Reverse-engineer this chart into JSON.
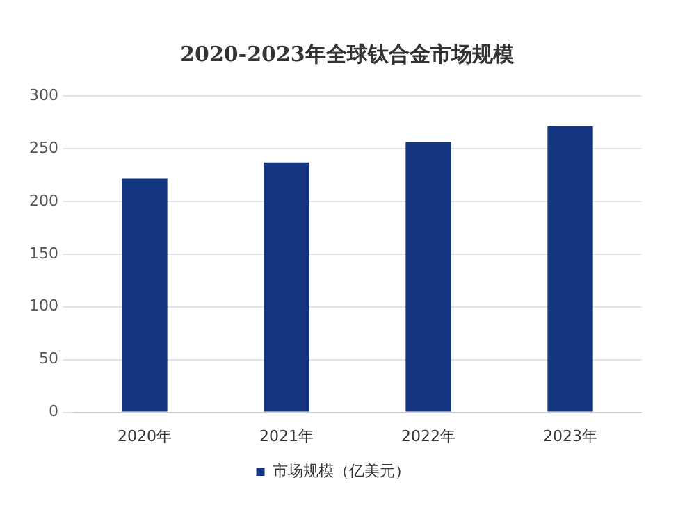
{
  "chart_data": {
    "type": "bar",
    "title": "2020-2023年全球钛合金市场规模",
    "categories": [
      "2020年",
      "2021年",
      "2022年",
      "2023年"
    ],
    "series": [
      {
        "name": "市场规模（亿美元）",
        "color": "#13357f",
        "values": [
          222,
          237,
          256,
          271
        ]
      }
    ],
    "ylim": [
      0,
      300
    ],
    "yticks": [
      0,
      50,
      100,
      150,
      200,
      250,
      300
    ],
    "grid": "y",
    "legend": "bottom"
  }
}
